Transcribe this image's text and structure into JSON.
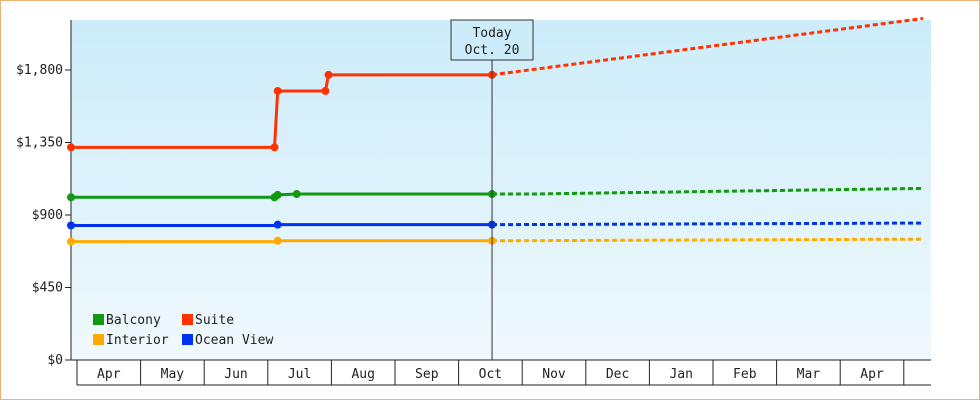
{
  "chart_data": {
    "type": "line",
    "title": "",
    "xlabel": "",
    "ylabel": "",
    "x_categories": [
      "Apr",
      "May",
      "Jun",
      "Jul",
      "Aug",
      "Sep",
      "Oct",
      "Nov",
      "Dec",
      "Jan",
      "Feb",
      "Mar",
      "Apr"
    ],
    "y_ticks": [
      {
        "value": 0,
        "label": "$0"
      },
      {
        "value": 450,
        "label": "$450"
      },
      {
        "value": 900,
        "label": "$900"
      },
      {
        "value": 1350,
        "label": "$1,350"
      },
      {
        "value": 1800,
        "label": "$1,800"
      }
    ],
    "ylim": [
      0,
      2110
    ],
    "x_range_months": [
      0,
      13
    ],
    "today": {
      "label": "Today",
      "date": "Oct. 20",
      "x": 6.62
    },
    "grid": false,
    "legend_position": "bottom-left",
    "series": [
      {
        "name": "Suite",
        "color": "#ff3300",
        "actual": [
          [
            0,
            1320
          ],
          [
            3.2,
            1320
          ],
          [
            3.25,
            1670
          ],
          [
            4.0,
            1670
          ],
          [
            4.05,
            1770
          ],
          [
            6.62,
            1770
          ]
        ],
        "forecast": [
          [
            6.62,
            1770
          ],
          [
            13.4,
            2120
          ]
        ],
        "markers": [
          [
            0,
            1320
          ],
          [
            3.2,
            1320
          ],
          [
            3.25,
            1670
          ],
          [
            4.0,
            1670
          ],
          [
            4.05,
            1770
          ],
          [
            6.62,
            1770
          ]
        ]
      },
      {
        "name": "Balcony",
        "color": "#119911",
        "actual": [
          [
            0,
            1010
          ],
          [
            3.2,
            1010
          ],
          [
            3.25,
            1025
          ],
          [
            3.55,
            1030
          ],
          [
            6.62,
            1030
          ]
        ],
        "forecast": [
          [
            6.62,
            1030
          ],
          [
            7.2,
            1030
          ],
          [
            13.4,
            1065
          ]
        ],
        "markers": [
          [
            0,
            1010
          ],
          [
            3.2,
            1010
          ],
          [
            3.25,
            1025
          ],
          [
            3.55,
            1030
          ],
          [
            6.62,
            1030
          ]
        ]
      },
      {
        "name": "Ocean View",
        "color": "#0033ee",
        "actual": [
          [
            0,
            835
          ],
          [
            3.2,
            835
          ],
          [
            3.25,
            840
          ],
          [
            6.62,
            840
          ]
        ],
        "forecast": [
          [
            6.62,
            840
          ],
          [
            13.4,
            850
          ]
        ],
        "markers": [
          [
            0,
            835
          ],
          [
            3.25,
            840
          ],
          [
            6.62,
            840
          ]
        ]
      },
      {
        "name": "Interior",
        "color": "#ffaa00",
        "actual": [
          [
            0,
            735
          ],
          [
            3.2,
            735
          ],
          [
            3.25,
            740
          ],
          [
            6.62,
            740
          ]
        ],
        "forecast": [
          [
            6.62,
            740
          ],
          [
            13.4,
            750
          ]
        ],
        "markers": [
          [
            0,
            735
          ],
          [
            3.25,
            740
          ],
          [
            6.62,
            740
          ]
        ]
      }
    ],
    "legend": [
      {
        "name": "Balcony",
        "color": "#119911"
      },
      {
        "name": "Suite",
        "color": "#ff3300"
      },
      {
        "name": "Interior",
        "color": "#ffaa00"
      },
      {
        "name": "Ocean View",
        "color": "#0033ee"
      }
    ]
  }
}
